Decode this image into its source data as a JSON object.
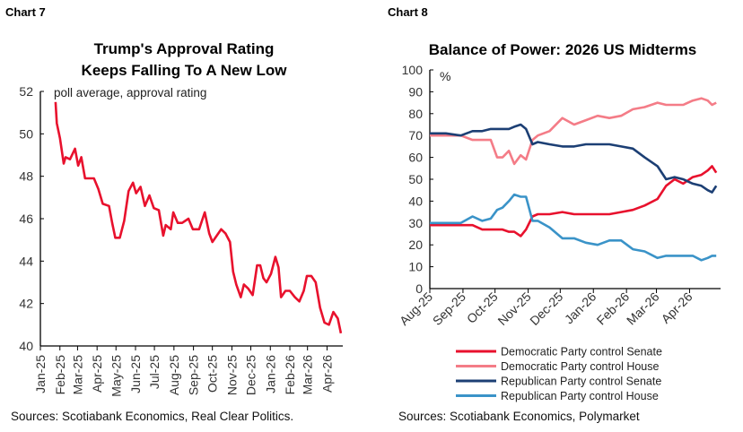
{
  "chart_data": [
    {
      "type": "line",
      "label": "Chart 7",
      "title": [
        "Trump's Approval Rating",
        "Keeps Falling To A New Low"
      ],
      "subtitle": "poll average, approval rating",
      "source": "Sources: Scotiabank Economics,  Real Clear Politics.",
      "ylim": [
        40,
        52
      ],
      "yticks": [
        40,
        42,
        44,
        46,
        48,
        50,
        52
      ],
      "xlim": [
        "2025-01-01",
        "2026-04-26"
      ],
      "xtick_labels": [
        "Jan-25",
        "Feb-25",
        "Mar-25",
        "Apr-25",
        "May-25",
        "Jun-25",
        "Jul-25",
        "Aug-25",
        "Sep-25",
        "Oct-25",
        "Nov-25",
        "Dec-25",
        "Jan-26",
        "Feb-26",
        "Mar-26",
        "Apr-26"
      ],
      "color": "#e8112d",
      "x": [
        "2025-01-25",
        "2025-01-27",
        "2025-02-01",
        "2025-02-07",
        "2025-02-10",
        "2025-02-17",
        "2025-02-25",
        "2025-03-02",
        "2025-03-07",
        "2025-03-13",
        "2025-03-20",
        "2025-03-27",
        "2025-04-03",
        "2025-04-10",
        "2025-04-20",
        "2025-04-25",
        "2025-04-30",
        "2025-05-07",
        "2025-05-14",
        "2025-05-21",
        "2025-05-28",
        "2025-06-02",
        "2025-06-09",
        "2025-06-16",
        "2025-06-23",
        "2025-06-30",
        "2025-07-08",
        "2025-07-15",
        "2025-07-19",
        "2025-07-27",
        "2025-07-31",
        "2025-08-07",
        "2025-08-14",
        "2025-08-24",
        "2025-08-31",
        "2025-09-10",
        "2025-09-19",
        "2025-09-26",
        "2025-10-01",
        "2025-10-08",
        "2025-10-15",
        "2025-10-22",
        "2025-10-29",
        "2025-11-03",
        "2025-11-08",
        "2025-11-15",
        "2025-11-20",
        "2025-11-27",
        "2025-12-04",
        "2025-12-11",
        "2025-12-16",
        "2025-12-21",
        "2025-12-26",
        "2026-01-02",
        "2026-01-09",
        "2026-01-14",
        "2026-01-18",
        "2026-01-25",
        "2026-02-01",
        "2026-02-09",
        "2026-02-16",
        "2026-02-23",
        "2026-02-28",
        "2026-03-07",
        "2026-03-14",
        "2026-03-21",
        "2026-03-28",
        "2026-04-04",
        "2026-04-11",
        "2026-04-18",
        "2026-04-23"
      ],
      "values": [
        51.5,
        50.5,
        49.8,
        48.6,
        48.9,
        48.8,
        49.3,
        48.5,
        48.9,
        47.9,
        47.9,
        47.9,
        47.4,
        46.7,
        46.6,
        45.8,
        45.1,
        45.1,
        45.9,
        47.3,
        47.7,
        47.2,
        47.5,
        46.6,
        47.1,
        46.5,
        46.4,
        45.2,
        45.7,
        45.5,
        46.3,
        45.8,
        45.8,
        46.0,
        45.5,
        45.5,
        46.3,
        45.3,
        44.9,
        45.2,
        45.5,
        45.3,
        44.9,
        43.5,
        42.9,
        42.3,
        42.9,
        42.7,
        42.4,
        43.8,
        43.8,
        43.2,
        43.0,
        43.4,
        44.2,
        43.7,
        42.3,
        42.6,
        42.6,
        42.3,
        42.1,
        42.6,
        43.3,
        43.3,
        43.0,
        41.8,
        41.1,
        41.0,
        41.6,
        41.3,
        40.6
      ]
    },
    {
      "type": "line",
      "label": "Chart 8",
      "title": "Balance of Power: 2026 US Midterms",
      "ylabel": "%",
      "source": "Sources: Scotiabank Economics, Polymarket",
      "ylim": [
        0,
        100
      ],
      "yticks": [
        0,
        10,
        20,
        30,
        40,
        50,
        60,
        70,
        80,
        90,
        100
      ],
      "xlim": [
        "2025-08-01",
        "2026-04-30"
      ],
      "xtick_labels": [
        "Aug-25",
        "Sep-25",
        "Oct-25",
        "Nov-25",
        "Dec-25",
        "Jan-26",
        "Feb-26",
        "Mar-26",
        "Apr-26"
      ],
      "legend_position": "bottom",
      "x": [
        "2025-08-01",
        "2025-08-16",
        "2025-08-30",
        "2025-09-10",
        "2025-09-19",
        "2025-09-27",
        "2025-10-03",
        "2025-10-08",
        "2025-10-14",
        "2025-10-19",
        "2025-10-25",
        "2025-10-30",
        "2025-11-05",
        "2025-11-10",
        "2025-11-21",
        "2025-12-03",
        "2025-12-14",
        "2025-12-25",
        "2026-01-05",
        "2026-01-16",
        "2026-01-27",
        "2026-02-07",
        "2026-02-18",
        "2026-03-02",
        "2026-03-10",
        "2026-03-18",
        "2026-03-26",
        "2026-04-04",
        "2026-04-12",
        "2026-04-18",
        "2026-04-22",
        "2026-04-26"
      ],
      "series": [
        {
          "name": "Democratic Party control Senate",
          "color": "#e8112d",
          "values": [
            29,
            29,
            29,
            29,
            27,
            27,
            27,
            27,
            26,
            26,
            24,
            27,
            33,
            34,
            34,
            35,
            34,
            34,
            34,
            34,
            35,
            36,
            38,
            41,
            47,
            50,
            48,
            51,
            52,
            54,
            56,
            53
          ]
        },
        {
          "name": "Democratic Party control House",
          "color": "#f47c87",
          "values": [
            70,
            70,
            70,
            68,
            68,
            68,
            60,
            60,
            63,
            57,
            61,
            59,
            68,
            70,
            72,
            78,
            75,
            77,
            79,
            78,
            79,
            82,
            83,
            85,
            84,
            84,
            84,
            86,
            87,
            86,
            84,
            85
          ]
        },
        {
          "name": "Republican Party control Senate",
          "color": "#1c3f74",
          "values": [
            71,
            71,
            70,
            72,
            72,
            73,
            73,
            73,
            73,
            74,
            75,
            73,
            66,
            67,
            66,
            65,
            65,
            66,
            66,
            66,
            65,
            64,
            60,
            56,
            50,
            51,
            50,
            48,
            47,
            45,
            44,
            47
          ]
        },
        {
          "name": "Republican Party control House",
          "color": "#3a93c8",
          "values": [
            30,
            30,
            30,
            33,
            31,
            32,
            36,
            37,
            40,
            43,
            42,
            42,
            31,
            31,
            28,
            23,
            23,
            21,
            20,
            22,
            22,
            18,
            17,
            14,
            15,
            15,
            15,
            15,
            13,
            14,
            15,
            15
          ]
        }
      ]
    }
  ]
}
